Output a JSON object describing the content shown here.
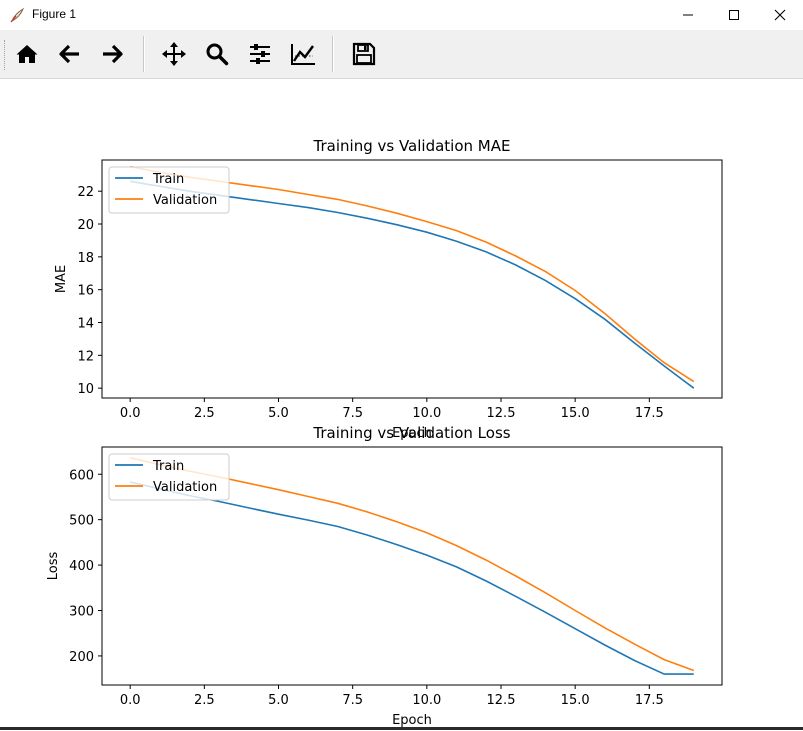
{
  "window": {
    "title": "Figure 1"
  },
  "toolbar": {
    "buttons": [
      {
        "name": "home-icon"
      },
      {
        "name": "back-arrow-icon"
      },
      {
        "name": "forward-arrow-icon"
      },
      {
        "name": "pan-move-icon"
      },
      {
        "name": "zoom-magnifier-icon"
      },
      {
        "name": "subplots-sliders-icon"
      },
      {
        "name": "edit-axes-curve-icon"
      },
      {
        "name": "save-floppy-icon"
      }
    ]
  },
  "colors": {
    "train": "#1f77b4",
    "validation": "#ff7f0e"
  },
  "chart_data": [
    {
      "type": "line",
      "title": "Training vs Validation MAE",
      "xlabel": "Epoch",
      "ylabel": "MAE",
      "xlim": [
        -0.95,
        19.95
      ],
      "ylim": [
        9.4,
        23.9
      ],
      "xticks": [
        0.0,
        2.5,
        5.0,
        7.5,
        10.0,
        12.5,
        15.0,
        17.5
      ],
      "xtick_labels": [
        "0.0",
        "2.5",
        "5.0",
        "7.5",
        "10.0",
        "12.5",
        "15.0",
        "17.5"
      ],
      "yticks": [
        10,
        12,
        14,
        16,
        18,
        20,
        22
      ],
      "ytick_labels": [
        "10",
        "12",
        "14",
        "16",
        "18",
        "20",
        "22"
      ],
      "legend": "upper left",
      "x": [
        0,
        1,
        2,
        3,
        4,
        5,
        6,
        7,
        8,
        9,
        10,
        11,
        12,
        13,
        14,
        15,
        16,
        17,
        18,
        19
      ],
      "series": [
        {
          "name": "Train",
          "values": [
            22.6,
            22.3,
            22.0,
            21.75,
            21.5,
            21.25,
            21.0,
            20.7,
            20.35,
            19.95,
            19.5,
            18.95,
            18.3,
            17.5,
            16.55,
            15.45,
            14.2,
            12.75,
            11.35,
            10.0
          ]
        },
        {
          "name": "Validation",
          "values": [
            23.5,
            23.15,
            22.85,
            22.6,
            22.35,
            22.1,
            21.8,
            21.5,
            21.1,
            20.65,
            20.15,
            19.6,
            18.9,
            18.05,
            17.1,
            15.95,
            14.55,
            13.0,
            11.55,
            10.4
          ]
        }
      ]
    },
    {
      "type": "line",
      "title": "Training vs Validation Loss",
      "xlabel": "Epoch",
      "ylabel": "Loss",
      "xlim": [
        -0.95,
        19.95
      ],
      "ylim": [
        136,
        660
      ],
      "xticks": [
        0.0,
        2.5,
        5.0,
        7.5,
        10.0,
        12.5,
        15.0,
        17.5
      ],
      "xtick_labels": [
        "0.0",
        "2.5",
        "5.0",
        "7.5",
        "10.0",
        "12.5",
        "15.0",
        "17.5"
      ],
      "yticks": [
        200,
        300,
        400,
        500,
        600
      ],
      "ytick_labels": [
        "200",
        "300",
        "400",
        "500",
        "600"
      ],
      "legend": "upper left",
      "x": [
        0,
        1,
        2,
        3,
        4,
        5,
        6,
        7,
        8,
        9,
        10,
        11,
        12,
        13,
        14,
        15,
        16,
        17,
        18,
        19
      ],
      "series": [
        {
          "name": "Train",
          "values": [
            583,
            568,
            553,
            540,
            526,
            512,
            499,
            485,
            466,
            445,
            422,
            396,
            365,
            331,
            296,
            260,
            224,
            190,
            160,
            160
          ]
        },
        {
          "name": "Validation",
          "values": [
            636,
            621,
            607,
            594,
            580,
            566,
            551,
            536,
            517,
            495,
            471,
            443,
            411,
            376,
            339,
            300,
            262,
            226,
            192,
            168
          ]
        }
      ]
    }
  ]
}
